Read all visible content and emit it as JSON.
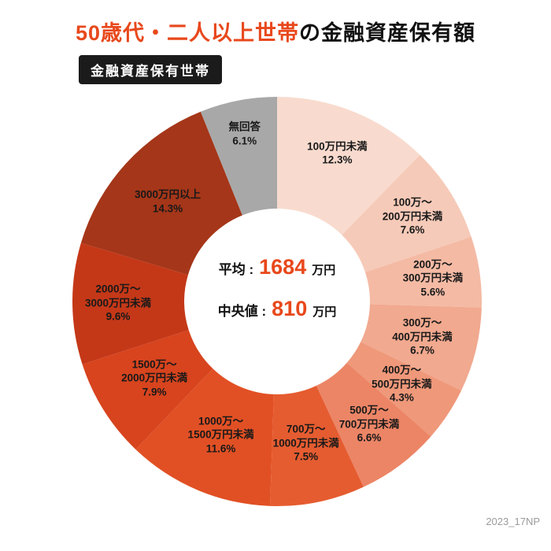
{
  "title": {
    "highlight": "50歳代・二人以上世帯",
    "rest": "の金融資産保有額"
  },
  "badge": "金融資産保有世帯",
  "center": {
    "avg_label": "平均 :",
    "avg_value": "1684",
    "avg_unit": "万円",
    "med_label": "中央値 :",
    "med_value": "810",
    "med_unit": "万円"
  },
  "footnote": "2023_17NP",
  "chart_data": {
    "type": "pie",
    "variant": "donut",
    "title": "50歳代・二人以上世帯の金融資産保有額",
    "subtitle": "金融資産保有世帯",
    "average_value_man_yen": 1684,
    "median_value_man_yen": 810,
    "start_angle_deg": 0,
    "direction": "clockwise",
    "center": [
      352,
      383
    ],
    "outer_radius": 260,
    "inner_radius": 118,
    "legend": "none",
    "segments": [
      {
        "category": "100万円未満",
        "value": 12.3,
        "color": "#f8dbce",
        "label_lines": [
          "100万円未満",
          "12.3%"
        ],
        "label_r": 203
      },
      {
        "category": "100万〜200万円未満",
        "value": 7.6,
        "color": "#f6cab8",
        "label_lines": [
          "100万〜",
          "200万円未満",
          "7.6%"
        ],
        "label_r": 203
      },
      {
        "category": "200万〜300万円未満",
        "value": 5.6,
        "color": "#f4baa4",
        "label_lines": [
          "200万〜",
          "300万円未満",
          "5.6%"
        ],
        "label_r": 200
      },
      {
        "category": "300万〜400万円未満",
        "value": 6.7,
        "color": "#f1a98f",
        "label_lines": [
          "300万〜",
          "400万円未満",
          "6.7%"
        ],
        "label_r": 190
      },
      {
        "category": "400万〜500万円未満",
        "value": 4.3,
        "color": "#ef987a",
        "label_lines": [
          "400万〜",
          "500万円未満",
          "4.3%"
        ],
        "label_r": 190
      },
      {
        "category": "500万〜700万円未満",
        "value": 6.6,
        "color": "#ec8566",
        "label_lines": [
          "500万〜",
          "700万円未満",
          "6.6%"
        ],
        "label_r": 195
      },
      {
        "category": "700万〜1000万円未満",
        "value": 7.5,
        "color": "#e55c30",
        "label_lines": [
          "700万〜",
          "1000万円未満",
          "7.5%"
        ],
        "label_r": 184
      },
      {
        "category": "1000万〜1500万円未満",
        "value": 11.6,
        "color": "#e15024",
        "label_lines": [
          "1000万〜",
          "1500万円未満",
          "11.6%"
        ],
        "label_r": 184
      },
      {
        "category": "1500万〜2000万円未満",
        "value": 7.9,
        "color": "#d7441e",
        "label_lines": [
          "1500万〜",
          "2000万円未満",
          "7.9%"
        ],
        "label_r": 184
      },
      {
        "category": "2000万〜3000万円未満",
        "value": 9.6,
        "color": "#c43818",
        "label_lines": [
          "2000万〜",
          "3000万円未満",
          "9.6%"
        ],
        "label_r": 202
      },
      {
        "category": "3000万円以上",
        "value": 14.3,
        "color": "#a53619",
        "label_lines": [
          "3000万円以上",
          "14.3%"
        ],
        "label_r": 188
      },
      {
        "category": "無回答",
        "value": 6.1,
        "color": "#a8a8a8",
        "label_lines": [
          "無回答",
          "6.1%"
        ],
        "label_r": 217
      }
    ]
  }
}
